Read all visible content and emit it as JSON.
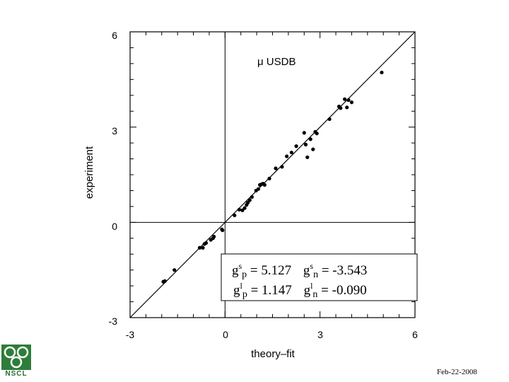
{
  "chart_data": {
    "type": "scatter",
    "title": "",
    "xlabel": "theory–fit",
    "ylabel": "experiment",
    "xlim": [
      -3,
      6
    ],
    "ylim": [
      -3,
      6
    ],
    "xticks": [
      "-3",
      "0",
      "3",
      "6"
    ],
    "yticks": [
      "-3",
      "0",
      "3",
      "6"
    ],
    "annotation": "μ USDB",
    "legend_box": {
      "gsp_label": "g",
      "gsp_sup": "s",
      "gsp_sub": "p",
      "gsp_value": " = 5.127",
      "gsn_label": "g",
      "gsn_sup": "s",
      "gsn_sub": "n",
      "gsn_value": " = -3.543",
      "glp_label": "g",
      "glp_sup": "l",
      "glp_sub": "p",
      "glp_value": " = 1.147",
      "gln_label": "g",
      "gln_sup": "l",
      "gln_sub": "n",
      "gln_value": " = -0.090"
    },
    "reference_line": "y = x",
    "points": [
      [
        -1.95,
        -1.87
      ],
      [
        -1.9,
        -1.85
      ],
      [
        -1.6,
        -1.5
      ],
      [
        -0.8,
        -0.8
      ],
      [
        -0.7,
        -0.8
      ],
      [
        -0.65,
        -0.68
      ],
      [
        -0.6,
        -0.65
      ],
      [
        -0.45,
        -0.55
      ],
      [
        -0.38,
        -0.5
      ],
      [
        -0.35,
        -0.45
      ],
      [
        -0.1,
        -0.22
      ],
      [
        -0.08,
        -0.25
      ],
      [
        0.3,
        0.22
      ],
      [
        0.45,
        0.4
      ],
      [
        0.55,
        0.38
      ],
      [
        0.62,
        0.45
      ],
      [
        0.68,
        0.55
      ],
      [
        0.72,
        0.62
      ],
      [
        0.78,
        0.7
      ],
      [
        0.85,
        0.8
      ],
      [
        0.98,
        1.0
      ],
      [
        1.05,
        1.05
      ],
      [
        1.1,
        1.18
      ],
      [
        1.15,
        1.2
      ],
      [
        1.2,
        1.22
      ],
      [
        1.25,
        1.18
      ],
      [
        1.4,
        1.38
      ],
      [
        1.6,
        1.7
      ],
      [
        1.8,
        1.75
      ],
      [
        1.95,
        2.08
      ],
      [
        2.1,
        2.2
      ],
      [
        2.25,
        2.4
      ],
      [
        2.5,
        2.82
      ],
      [
        2.55,
        2.45
      ],
      [
        2.6,
        2.05
      ],
      [
        2.7,
        2.62
      ],
      [
        2.78,
        2.3
      ],
      [
        2.85,
        2.85
      ],
      [
        2.9,
        2.8
      ],
      [
        3.3,
        3.25
      ],
      [
        3.6,
        3.65
      ],
      [
        3.65,
        3.6
      ],
      [
        3.78,
        3.88
      ],
      [
        3.85,
        3.62
      ],
      [
        3.9,
        3.85
      ],
      [
        4.0,
        3.78
      ],
      [
        4.95,
        4.72
      ]
    ]
  },
  "footer": {
    "date": "Feb-22-2008",
    "logo_text": "NSCL",
    "logo_icon": "nscl-logo-icon"
  }
}
